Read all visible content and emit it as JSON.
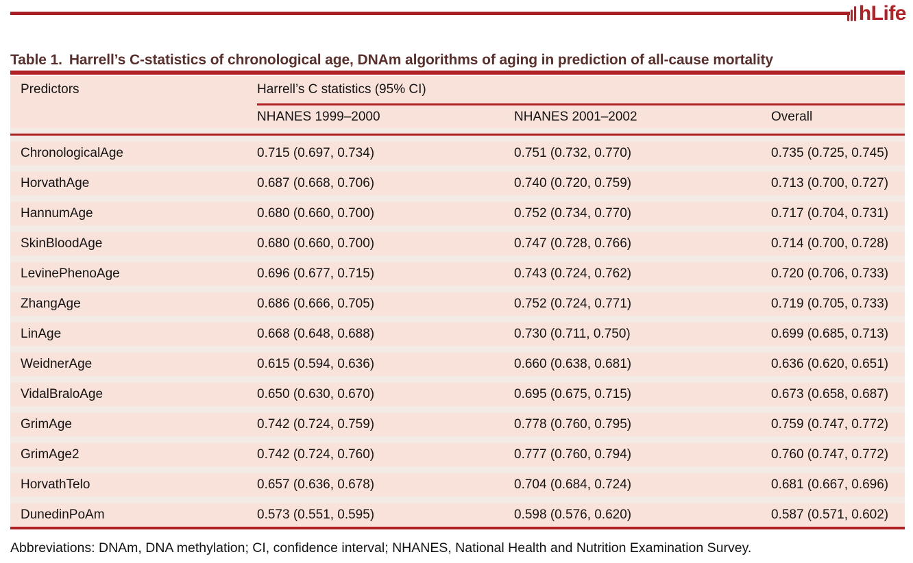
{
  "brand": {
    "logo_text": "hLife"
  },
  "colors": {
    "rule_red": "#b01f24",
    "masthead_red": "#a81e22",
    "logo_red": "#b32025",
    "title_maroon": "#5a2f2b",
    "row_pink": "#f8e2d9",
    "row_gap": "#f3e9e5",
    "text_dark": "#141414"
  },
  "table": {
    "title_label": "Table 1.",
    "title_text": "Harrell’s C-statistics of chronological age, DNAm algorithms of aging in prediction of all-cause mortality",
    "col1_header": "Predictors",
    "group_header": "Harrell’s C statistics (95% CI)",
    "subheaders": [
      "NHANES 1999–2000",
      "NHANES 2001–2002",
      "Overall"
    ],
    "rows": [
      {
        "predictor": "ChronologicalAge",
        "c1999": "0.715 (0.697, 0.734)",
        "c2001": "0.751 (0.732, 0.770)",
        "overall": "0.735 (0.725, 0.745)"
      },
      {
        "predictor": "HorvathAge",
        "c1999": "0.687 (0.668, 0.706)",
        "c2001": "0.740 (0.720, 0.759)",
        "overall": "0.713 (0.700, 0.727)"
      },
      {
        "predictor": "HannumAge",
        "c1999": "0.680 (0.660, 0.700)",
        "c2001": "0.752 (0.734, 0.770)",
        "overall": "0.717 (0.704, 0.731)"
      },
      {
        "predictor": "SkinBloodAge",
        "c1999": "0.680 (0.660, 0.700)",
        "c2001": "0.747 (0.728, 0.766)",
        "overall": "0.714 (0.700, 0.728)"
      },
      {
        "predictor": "LevinePhenoAge",
        "c1999": "0.696 (0.677, 0.715)",
        "c2001": "0.743 (0.724, 0.762)",
        "overall": "0.720 (0.706, 0.733)"
      },
      {
        "predictor": "ZhangAge",
        "c1999": "0.686 (0.666, 0.705)",
        "c2001": "0.752 (0.724, 0.771)",
        "overall": "0.719 (0.705, 0.733)"
      },
      {
        "predictor": "LinAge",
        "c1999": "0.668 (0.648, 0.688)",
        "c2001": "0.730 (0.711, 0.750)",
        "overall": "0.699 (0.685, 0.713)"
      },
      {
        "predictor": "WeidnerAge",
        "c1999": "0.615 (0.594, 0.636)",
        "c2001": "0.660 (0.638, 0.681)",
        "overall": "0.636 (0.620, 0.651)"
      },
      {
        "predictor": "VidalBraloAge",
        "c1999": "0.650 (0.630, 0.670)",
        "c2001": "0.695 (0.675, 0.715)",
        "overall": "0.673 (0.658, 0.687)"
      },
      {
        "predictor": "GrimAge",
        "c1999": "0.742 (0.724, 0.759)",
        "c2001": "0.778 (0.760, 0.795)",
        "overall": "0.759 (0.747, 0.772)"
      },
      {
        "predictor": "GrimAge2",
        "c1999": "0.742 (0.724, 0.760)",
        "c2001": "0.777 (0.760, 0.794)",
        "overall": "0.760 (0.747, 0.772)"
      },
      {
        "predictor": "HorvathTelo",
        "c1999": "0.657 (0.636, 0.678)",
        "c2001": "0.704 (0.684, 0.724)",
        "overall": "0.681 (0.667, 0.696)"
      },
      {
        "predictor": "DunedinPoAm",
        "c1999": "0.573 (0.551, 0.595)",
        "c2001": "0.598 (0.576, 0.620)",
        "overall": "0.587 (0.571, 0.602)"
      }
    ],
    "footnote": "Abbreviations: DNAm, DNA methylation; CI, confidence interval; NHANES, National Health and Nutrition Examination Survey."
  }
}
